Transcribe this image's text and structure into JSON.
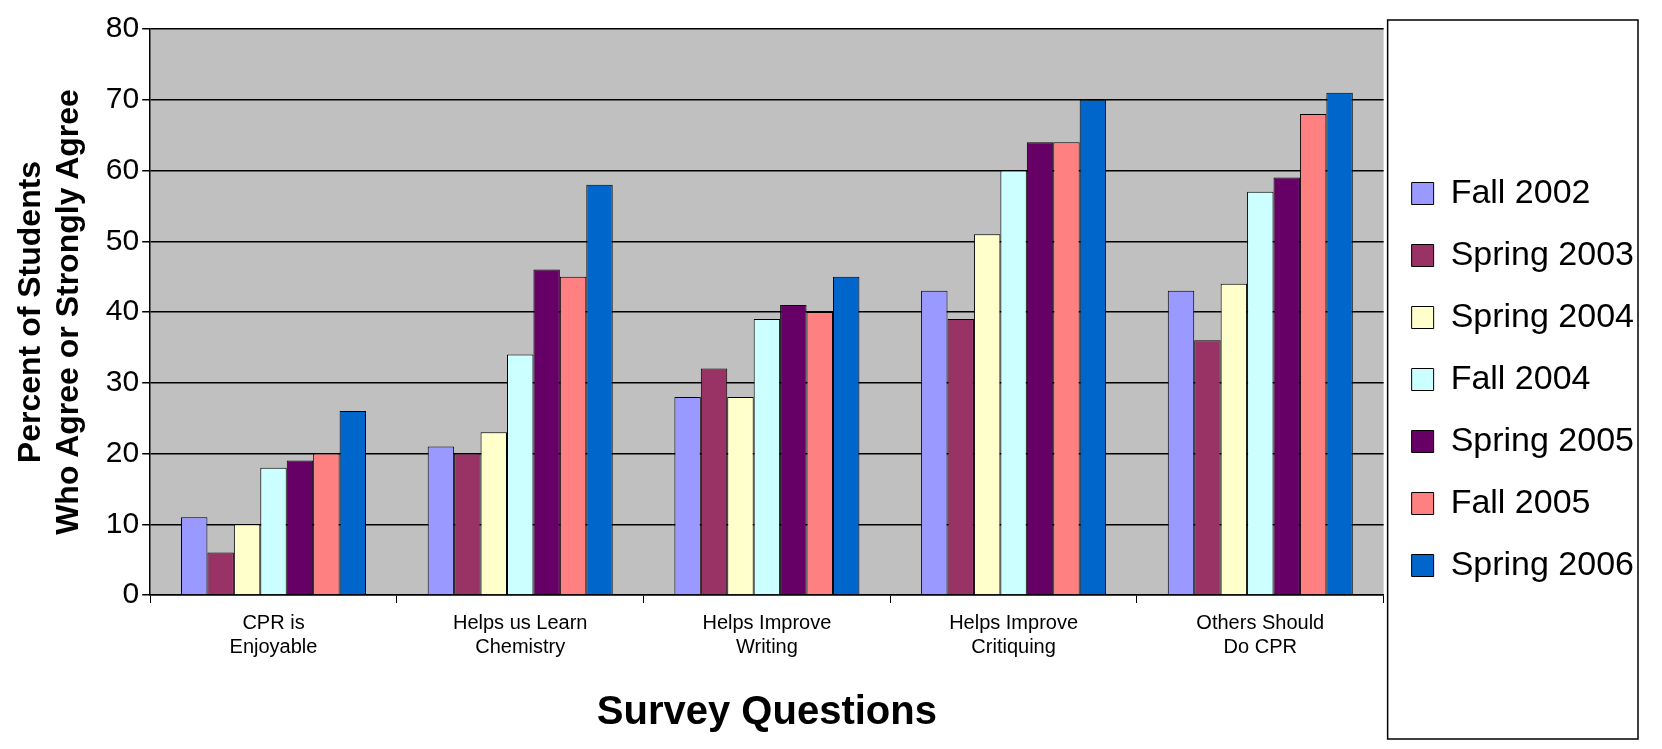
{
  "chart_data": {
    "type": "bar",
    "xlabel": "Survey Questions",
    "ylabel": "Percent of Students\nWho Agree or Strongly Agree",
    "categories": [
      "CPR is Enjoyable",
      "Helps us Learn Chemistry",
      "Helps Improve Writing",
      "Helps Improve Critiquing",
      "Others Should Do CPR"
    ],
    "series": [
      {
        "name": "Fall 2002",
        "color": "#9999ff",
        "values": [
          11,
          21,
          28,
          43,
          43
        ]
      },
      {
        "name": "Spring 2003",
        "color": "#993366",
        "values": [
          6,
          20,
          32,
          39,
          36
        ]
      },
      {
        "name": "Spring 2004",
        "color": "#ffffcc",
        "values": [
          10,
          23,
          28,
          51,
          44
        ]
      },
      {
        "name": "Fall 2004",
        "color": "#ccffff",
        "values": [
          18,
          34,
          39,
          60,
          57
        ]
      },
      {
        "name": "Spring 2005",
        "color": "#660066",
        "values": [
          19,
          46,
          41,
          64,
          59
        ]
      },
      {
        "name": "Fall 2005",
        "color": "#ff8080",
        "values": [
          20,
          45,
          40,
          64,
          68
        ]
      },
      {
        "name": "Spring 2006",
        "color": "#0066cc",
        "values": [
          26,
          58,
          45,
          70,
          71
        ]
      }
    ],
    "ylim": [
      0,
      80
    ],
    "yticks": [
      0,
      10,
      20,
      30,
      40,
      50,
      60,
      70,
      80
    ],
    "grid": "y",
    "legend": "right"
  }
}
